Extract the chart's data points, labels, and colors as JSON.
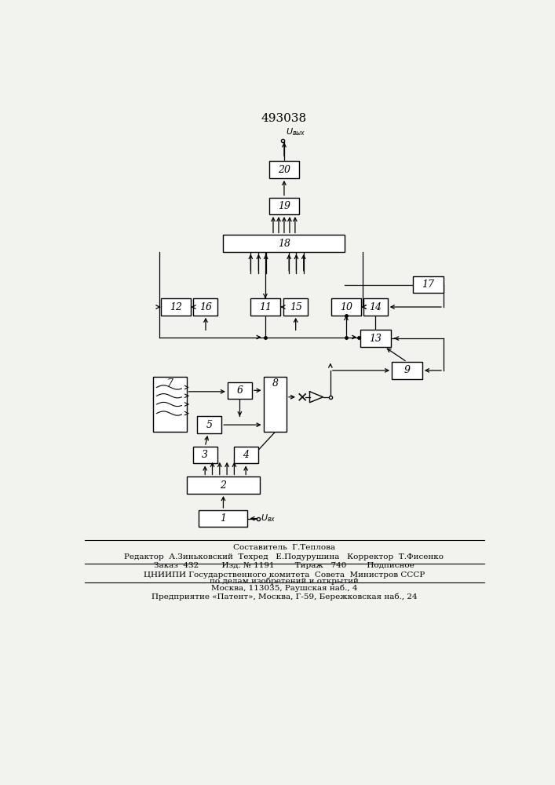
{
  "title": "493038",
  "bg_color": "#f2f2ee",
  "footer_lines": [
    [
      "Составитель  Г.Теплова",
      "center"
    ],
    [
      "Редактор  А.Зиньковский  Техред   Е.Подурушина   Корректор  Т.Фисенко",
      "center"
    ],
    [
      "Заказ  432         Изд. № 1191        Тираж   740        Подписное",
      "center"
    ],
    [
      "ЦНИИПИ Государственного комитета  Совета  Министров СССР",
      "center"
    ],
    [
      "по делам изобретений и открытий",
      "center"
    ],
    [
      "Москва, 113035, Раушская наб., 4",
      "center"
    ],
    [
      "Предприятие «Патент», Москва, Г-59, Бережковская наб., 24",
      "center"
    ]
  ]
}
